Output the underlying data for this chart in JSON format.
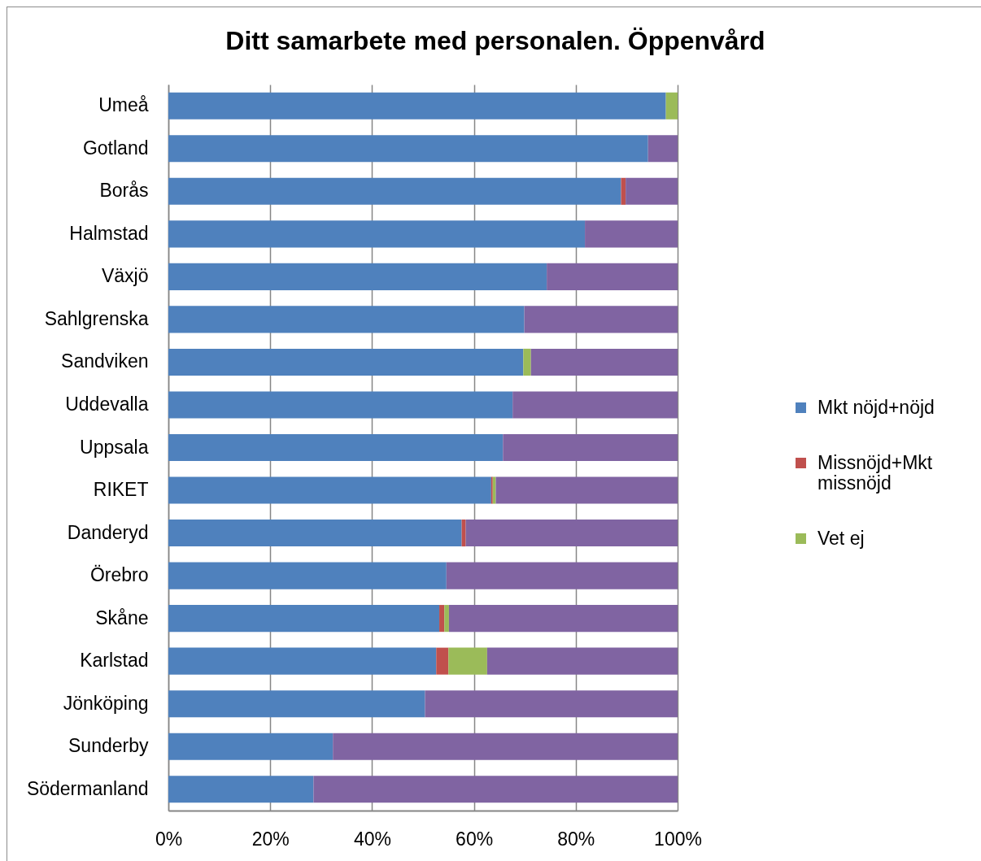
{
  "chart_data": {
    "type": "bar",
    "title": "Ditt samarbete med personalen. Öppenvård",
    "orientation": "horizontal",
    "stacked": true,
    "categories": [
      "Umeå",
      "Gotland",
      "Borås",
      "Halmstad",
      "Växjö",
      "Sahlgrenska",
      "Sandviken",
      "Uddevalla",
      "Uppsala",
      "RIKET",
      "Danderyd",
      "Örebro",
      "Skåne",
      "Karlstad",
      "Jönköping",
      "Sunderby",
      "Södermanland"
    ],
    "series": [
      {
        "name": "Mkt nöjd+nöjd",
        "color": "#4f81bd",
        "values": [
          97.7,
          94.2,
          88.9,
          81.8,
          74.3,
          69.9,
          69.7,
          67.6,
          65.7,
          63.4,
          57.6,
          54.6,
          53.2,
          52.6,
          50.4,
          32.3,
          28.5
        ]
      },
      {
        "name": "Missnöjd+Mkt missnöjd",
        "color": "#c0504d",
        "values": [
          null,
          null,
          0.9,
          null,
          null,
          null,
          null,
          null,
          null,
          0.3,
          0.8,
          null,
          1.0,
          2.4,
          null,
          null,
          null
        ]
      },
      {
        "name": "Vet ej",
        "color": "#9bbb59",
        "values": [
          2.3,
          null,
          null,
          null,
          null,
          null,
          1.5,
          null,
          null,
          0.6,
          null,
          null,
          0.9,
          7.6,
          null,
          null,
          null
        ]
      },
      {
        "color": "#8064a2",
        "values": [
          null,
          5.8,
          10.2,
          18.2,
          25.7,
          30.1,
          28.8,
          32.4,
          34.3,
          35.7,
          41.6,
          45.4,
          44.9,
          37.4,
          49.6,
          67.7,
          71.5
        ]
      }
    ],
    "xlim": [
      0,
      100
    ],
    "xticks": [
      {
        "value": 0,
        "label": "0%"
      },
      {
        "value": 20,
        "label": "20%"
      },
      {
        "value": 40,
        "label": "40%"
      },
      {
        "value": 60,
        "label": "60%"
      },
      {
        "value": 80,
        "label": "80%"
      },
      {
        "value": 100,
        "label": "100%"
      }
    ],
    "grid": "x",
    "legend": "right"
  }
}
